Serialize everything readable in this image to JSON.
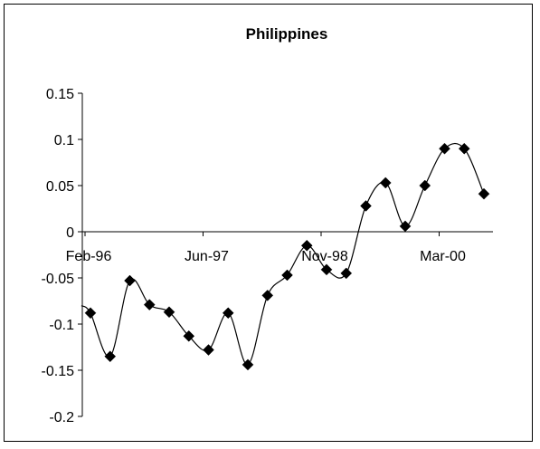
{
  "chart_data": {
    "type": "line",
    "title": "Philippines",
    "xlabel": "",
    "ylabel": "",
    "ylim": [
      -0.2,
      0.15
    ],
    "y_ticks": [
      "0.15",
      "0.1",
      "0.05",
      "0",
      "-0.05",
      "-0.1",
      "-0.15",
      "-0.2"
    ],
    "x_ticks": [
      "Feb-96",
      "Jun-97",
      "Nov-98",
      "Mar-00"
    ],
    "grid": false,
    "legend": "none",
    "series": [
      {
        "marker": "diamond",
        "color": "#000000",
        "values": [
          -0.088,
          -0.135,
          -0.053,
          -0.079,
          -0.087,
          -0.113,
          -0.128,
          -0.088,
          -0.144,
          -0.069,
          -0.047,
          -0.015,
          -0.041,
          -0.045,
          0.028,
          0.053,
          0.006,
          0.05,
          0.09,
          0.09,
          0.041
        ]
      }
    ]
  }
}
